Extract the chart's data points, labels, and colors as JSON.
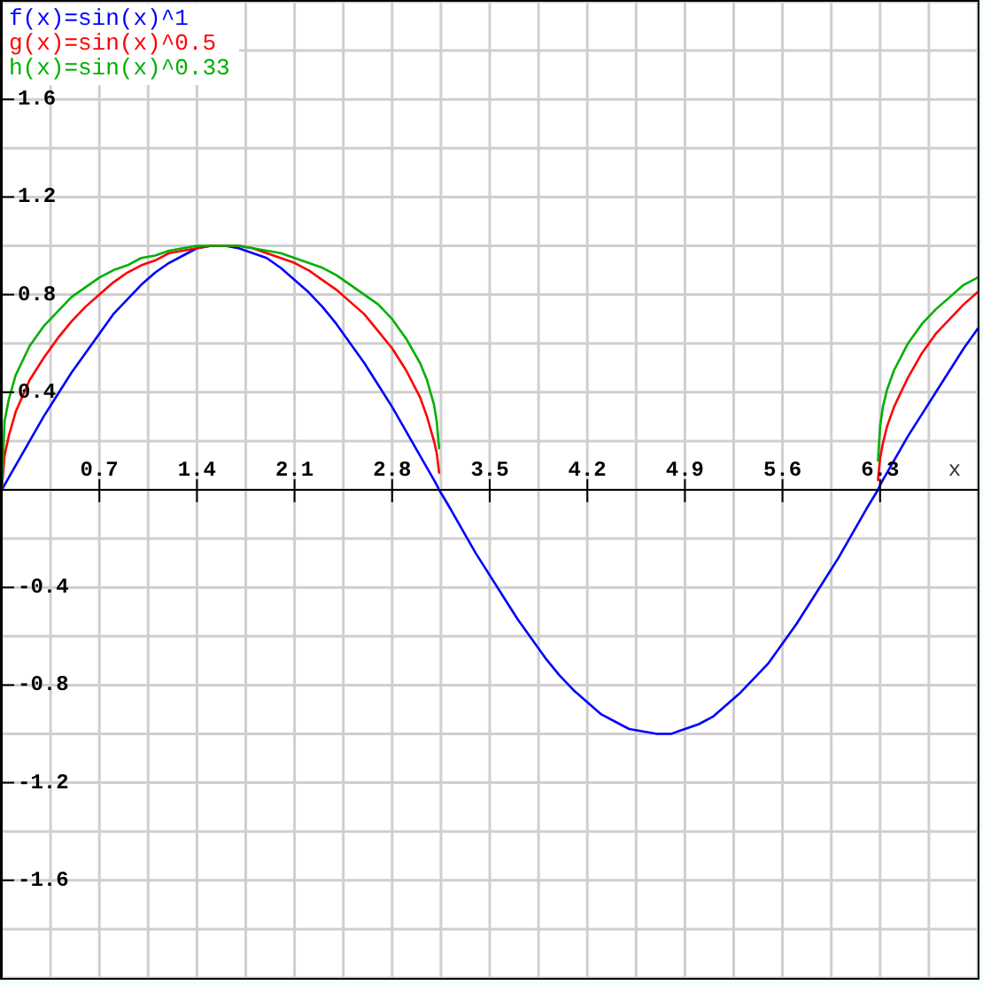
{
  "chart_data": {
    "type": "line",
    "xlabel": "x",
    "x": [
      0,
      0.02,
      0.05,
      0.1,
      0.2,
      0.3,
      0.4,
      0.5,
      0.6,
      0.7,
      0.8,
      0.9,
      1,
      1.1,
      1.2,
      1.3,
      1.4,
      1.5,
      1.6,
      1.7,
      1.8,
      1.9,
      2,
      2.1,
      2.2,
      2.3,
      2.4,
      2.5,
      2.6,
      2.7,
      2.8,
      2.9,
      3,
      3.05,
      3.1,
      3.12,
      3.137,
      3.2,
      3.3,
      3.4,
      3.5,
      3.6,
      3.7,
      3.8,
      3.9,
      4,
      4.1,
      4.2,
      4.3,
      4.4,
      4.5,
      4.6,
      4.7,
      4.8,
      4.9,
      5,
      5.1,
      5.2,
      5.3,
      5.4,
      5.5,
      5.6,
      5.7,
      5.8,
      5.9,
      6,
      6.1,
      6.2,
      6.285,
      6.3,
      6.32,
      6.35,
      6.4,
      6.5,
      6.6,
      6.7,
      6.8,
      6.9,
      7
    ],
    "series": [
      {
        "name": "f(x)=sin(x)^1",
        "color": "#0000ff",
        "values": [
          0,
          0.02,
          0.05,
          0.1,
          0.2,
          0.3,
          0.39,
          0.48,
          0.56,
          0.64,
          0.72,
          0.78,
          0.84,
          0.89,
          0.93,
          0.96,
          0.99,
          1,
          1,
          0.99,
          0.97,
          0.95,
          0.91,
          0.86,
          0.81,
          0.75,
          0.68,
          0.6,
          0.52,
          0.43,
          0.34,
          0.24,
          0.14,
          0.09,
          0.04,
          0.02,
          0,
          -0.06,
          -0.16,
          -0.26,
          -0.35,
          -0.44,
          -0.53,
          -0.61,
          -0.69,
          -0.76,
          -0.82,
          -0.87,
          -0.92,
          -0.95,
          -0.98,
          -0.99,
          -1,
          -1,
          -0.98,
          -0.96,
          -0.93,
          -0.88,
          -0.83,
          -0.77,
          -0.71,
          -0.63,
          -0.55,
          -0.46,
          -0.37,
          -0.28,
          -0.18,
          -0.08,
          0,
          0.02,
          0.04,
          0.07,
          0.12,
          0.22,
          0.31,
          0.4,
          0.49,
          0.58,
          0.66
        ]
      },
      {
        "name": "g(x)=sin(x)^0.5",
        "color": "#ff0000",
        "values": [
          0,
          0.14,
          0.22,
          0.32,
          0.45,
          0.54,
          0.62,
          0.69,
          0.75,
          0.8,
          0.85,
          0.89,
          0.92,
          0.94,
          0.97,
          0.98,
          0.99,
          1,
          1,
          1,
          0.99,
          0.97,
          0.95,
          0.93,
          0.9,
          0.86,
          0.82,
          0.77,
          0.72,
          0.65,
          0.58,
          0.49,
          0.38,
          0.3,
          0.2,
          0.15,
          0.07,
          null,
          null,
          null,
          null,
          null,
          null,
          null,
          null,
          null,
          null,
          null,
          null,
          null,
          null,
          null,
          null,
          null,
          null,
          null,
          null,
          null,
          null,
          null,
          null,
          null,
          null,
          null,
          null,
          null,
          null,
          null,
          0.04,
          0.13,
          0.19,
          0.26,
          0.34,
          0.46,
          0.56,
          0.64,
          0.7,
          0.76,
          0.81
        ]
      },
      {
        "name": "h(x)=sin(x)^0.33",
        "color": "#00b000",
        "values": [
          0,
          0.28,
          0.37,
          0.47,
          0.59,
          0.67,
          0.73,
          0.79,
          0.83,
          0.87,
          0.9,
          0.92,
          0.95,
          0.96,
          0.98,
          0.99,
          1,
          1,
          1,
          1,
          0.99,
          0.98,
          0.97,
          0.95,
          0.93,
          0.91,
          0.88,
          0.84,
          0.8,
          0.76,
          0.7,
          0.62,
          0.52,
          0.45,
          0.35,
          0.28,
          0.17,
          null,
          null,
          null,
          null,
          null,
          null,
          null,
          null,
          null,
          null,
          null,
          null,
          null,
          null,
          null,
          null,
          null,
          null,
          null,
          null,
          null,
          null,
          null,
          null,
          null,
          null,
          null,
          null,
          null,
          null,
          null,
          0.12,
          0.26,
          0.34,
          0.41,
          0.49,
          0.6,
          0.68,
          0.74,
          0.79,
          0.84,
          0.87
        ]
      }
    ],
    "xlim": [
      0,
      7
    ],
    "ylim": [
      -2,
      2
    ],
    "xticks": [
      0.7,
      1.4,
      2.1,
      2.8,
      3.5,
      4.2,
      4.9,
      5.6,
      6.3
    ],
    "yticks": [
      -1.6,
      -1.2,
      -0.8,
      -0.4,
      0.4,
      0.8,
      1.2,
      1.6
    ],
    "grid": true,
    "legend": "top left",
    "line_style": "solid"
  }
}
